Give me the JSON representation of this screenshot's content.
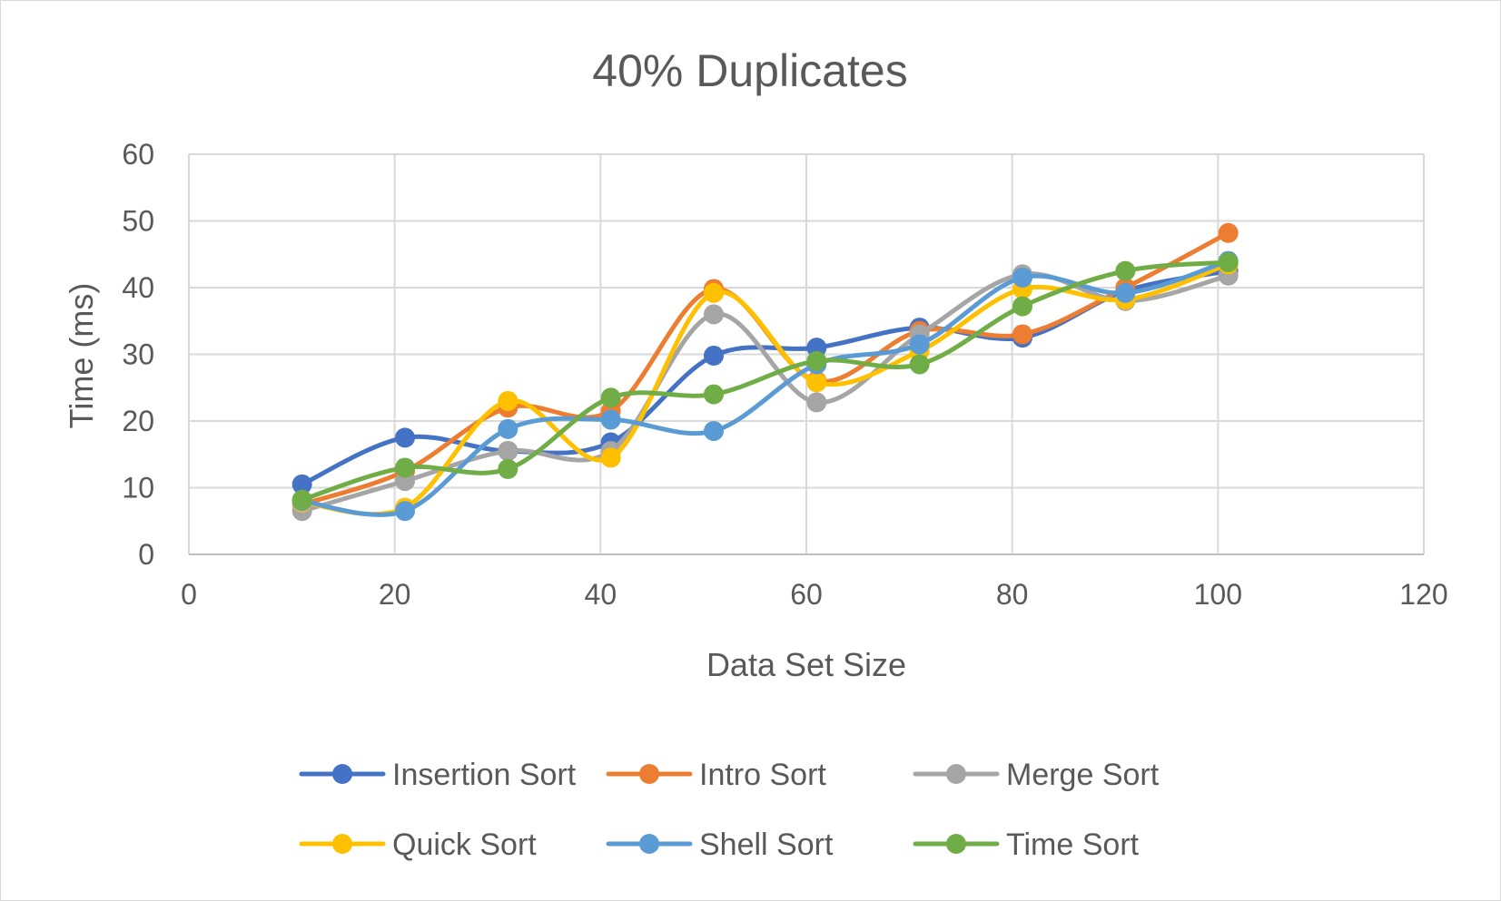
{
  "chart_data": {
    "type": "line",
    "title": "40% Duplicates",
    "xlabel": "Data Set Size",
    "ylabel": "Time (ms)",
    "xlim": [
      0,
      120
    ],
    "ylim": [
      0,
      60
    ],
    "xticks": [
      0,
      20,
      40,
      60,
      80,
      100,
      120
    ],
    "yticks": [
      0,
      10,
      20,
      30,
      40,
      50,
      60
    ],
    "grid": true,
    "smooth": true,
    "legend_position": "bottom",
    "x": [
      11,
      21,
      31,
      41,
      51,
      61,
      71,
      81,
      91,
      101
    ],
    "series": [
      {
        "name": "Insertion Sort",
        "color": "#4472C4",
        "values": [
          10.5,
          17.5,
          15.5,
          16.8,
          29.8,
          31.0,
          34.0,
          32.5,
          39.5,
          42.5
        ]
      },
      {
        "name": "Intro Sort",
        "color": "#ED7D31",
        "values": [
          7.5,
          12.5,
          22.0,
          21.5,
          39.8,
          26.0,
          33.5,
          33.0,
          40.0,
          48.2
        ]
      },
      {
        "name": "Merge Sort",
        "color": "#A5A5A5",
        "values": [
          6.5,
          11.0,
          15.5,
          15.5,
          36.0,
          22.8,
          33.0,
          42.0,
          38.0,
          41.8
        ]
      },
      {
        "name": "Quick Sort",
        "color": "#FFC000",
        "values": [
          7.8,
          7.0,
          23.0,
          14.5,
          39.2,
          25.8,
          30.5,
          39.8,
          38.2,
          43.5
        ]
      },
      {
        "name": "Shell Sort",
        "color": "#5B9BD5",
        "values": [
          8.0,
          6.5,
          18.8,
          20.2,
          18.5,
          28.5,
          31.5,
          41.5,
          39.2,
          44.0
        ]
      },
      {
        "name": "Time Sort",
        "color": "#70AD47",
        "values": [
          8.2,
          13.0,
          12.8,
          23.5,
          24.0,
          29.0,
          28.5,
          37.2,
          42.5,
          43.8
        ]
      }
    ]
  }
}
